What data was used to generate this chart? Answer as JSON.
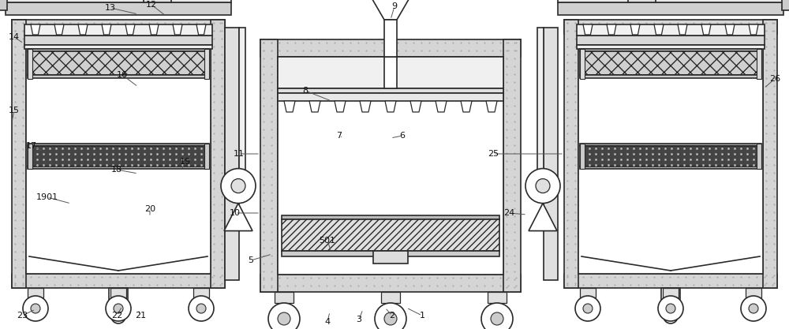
{
  "bg_color": "#ffffff",
  "line_color": "#2a2a2a",
  "dot_fill": "#d8d8d8",
  "dot_color": "#aaaaaa",
  "white_fill": "#ffffff",
  "light_gray": "#e8e8e8",
  "med_gray": "#cccccc",
  "dark_fill": "#555555",
  "figsize": [
    10.0,
    4.17
  ],
  "dpi": 100
}
